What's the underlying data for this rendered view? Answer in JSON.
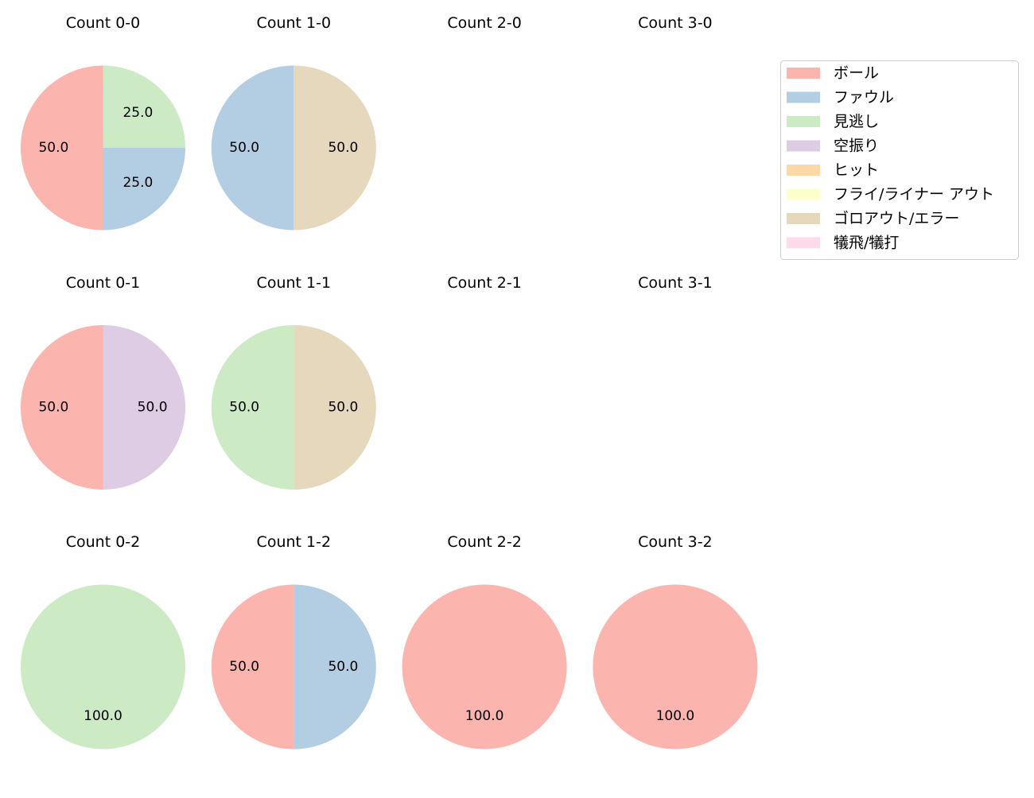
{
  "chart_data": {
    "type": "pie",
    "legend": {
      "placement": "upper-right",
      "entries": [
        {
          "name": "ボール",
          "color": "#fbb4ae"
        },
        {
          "name": "ファウル",
          "color": "#b3cde3"
        },
        {
          "name": "見逃し",
          "color": "#ccebc5"
        },
        {
          "name": "空振り",
          "color": "#decbe4"
        },
        {
          "name": "ヒット",
          "color": "#fed9a6"
        },
        {
          "name": "フライ/ライナー アウト",
          "color": "#ffffcc"
        },
        {
          "name": "ゴロアウト/エラー",
          "color": "#e5d8bd"
        },
        {
          "name": "犠飛/犠打",
          "color": "#fddaec"
        }
      ]
    },
    "charts": [
      {
        "title": "Count 0-0",
        "slices": [
          {
            "category": "ボール",
            "value": 50.0,
            "label": "50.0"
          },
          {
            "category": "ファウル",
            "value": 25.0,
            "label": "25.0"
          },
          {
            "category": "見逃し",
            "value": 25.0,
            "label": "25.0"
          }
        ]
      },
      {
        "title": "Count 1-0",
        "slices": [
          {
            "category": "ファウル",
            "value": 50.0,
            "label": "50.0"
          },
          {
            "category": "ゴロアウト/エラー",
            "value": 50.0,
            "label": "50.0"
          }
        ]
      },
      {
        "title": "Count 2-0",
        "slices": []
      },
      {
        "title": "Count 3-0",
        "slices": []
      },
      {
        "title": "Count 0-1",
        "slices": [
          {
            "category": "ボール",
            "value": 50.0,
            "label": "50.0"
          },
          {
            "category": "空振り",
            "value": 50.0,
            "label": "50.0"
          }
        ]
      },
      {
        "title": "Count 1-1",
        "slices": [
          {
            "category": "見逃し",
            "value": 50.0,
            "label": "50.0"
          },
          {
            "category": "ゴロアウト/エラー",
            "value": 50.0,
            "label": "50.0"
          }
        ]
      },
      {
        "title": "Count 2-1",
        "slices": []
      },
      {
        "title": "Count 3-1",
        "slices": []
      },
      {
        "title": "Count 0-2",
        "slices": [
          {
            "category": "見逃し",
            "value": 100.0,
            "label": "100.0"
          }
        ]
      },
      {
        "title": "Count 1-2",
        "slices": [
          {
            "category": "ボール",
            "value": 50.0,
            "label": "50.0"
          },
          {
            "category": "ファウル",
            "value": 50.0,
            "label": "50.0"
          }
        ]
      },
      {
        "title": "Count 2-2",
        "slices": [
          {
            "category": "ボール",
            "value": 100.0,
            "label": "100.0"
          }
        ]
      },
      {
        "title": "Count 3-2",
        "slices": [
          {
            "category": "ボール",
            "value": 100.0,
            "label": "100.0"
          }
        ]
      }
    ]
  }
}
